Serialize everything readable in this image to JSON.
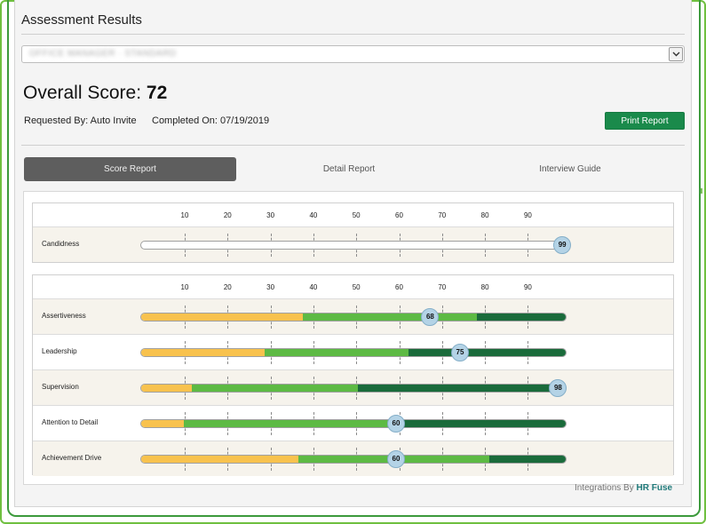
{
  "header": {
    "title": "Assessment Results"
  },
  "selector": {
    "value": "OFFICE MANAGER · STANDARD"
  },
  "score": {
    "label": "Overall Score:",
    "value": "72"
  },
  "meta": {
    "requested_label": "Requested By:",
    "requested_value": "Auto Invite",
    "completed_label": "Completed On:",
    "completed_value": "07/19/2019"
  },
  "actions": {
    "print_label": "Print Report"
  },
  "tabs": [
    {
      "label": "Score Report",
      "active": true
    },
    {
      "label": "Detail Report",
      "active": false
    },
    {
      "label": "Interview Guide",
      "active": false
    }
  ],
  "scale_ticks": [
    "10",
    "20",
    "30",
    "40",
    "50",
    "60",
    "70",
    "80",
    "90"
  ],
  "colors": {
    "low": "#f8c24e",
    "mid": "#5dba44",
    "high": "#1a6b3b",
    "marker": "#b4d3e6",
    "accent": "#1a8a4b"
  },
  "candidness": {
    "label": "Candidness",
    "score": 99
  },
  "traits": [
    {
      "label": "Assertiveness",
      "score": 68,
      "ranges": [
        [
          0,
          38,
          "low"
        ],
        [
          38,
          79,
          "mid"
        ],
        [
          79,
          100,
          "high"
        ]
      ]
    },
    {
      "label": "Leadership",
      "score": 75,
      "ranges": [
        [
          0,
          29,
          "low"
        ],
        [
          29,
          63,
          "mid"
        ],
        [
          63,
          100,
          "high"
        ]
      ]
    },
    {
      "label": "Supervision",
      "score": 98,
      "ranges": [
        [
          0,
          12,
          "low"
        ],
        [
          12,
          51,
          "mid"
        ],
        [
          51,
          100,
          "high"
        ]
      ]
    },
    {
      "label": "Attention to Detail",
      "score": 60,
      "ranges": [
        [
          0,
          10,
          "low"
        ],
        [
          10,
          60,
          "mid"
        ],
        [
          60,
          100,
          "high"
        ]
      ]
    },
    {
      "label": "Achievement Drive",
      "score": 60,
      "ranges": [
        [
          0,
          37,
          "low"
        ],
        [
          37,
          82,
          "mid"
        ],
        [
          82,
          100,
          "high"
        ]
      ]
    }
  ],
  "footer": {
    "prefix": "Integrations By",
    "brand": "HR Fuse"
  }
}
